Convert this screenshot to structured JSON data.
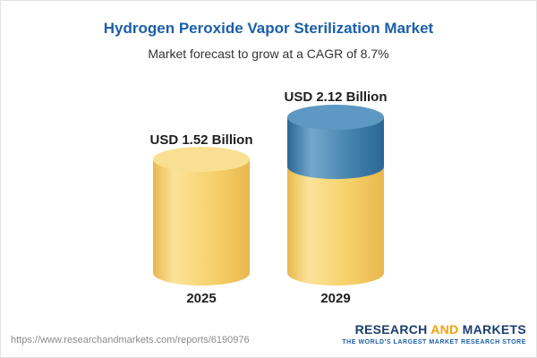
{
  "header": {
    "title": "Hydrogen Peroxide Vapor Sterilization Market",
    "subtitle": "Market forecast to grow at a CAGR of 8.7%"
  },
  "chart_data": {
    "type": "bar",
    "variant": "3d-cylinder",
    "categories": [
      "2025",
      "2029"
    ],
    "values": [
      1.52,
      2.12
    ],
    "value_labels": [
      "USD 1.52 Billion",
      "USD 2.12 Billion"
    ],
    "unit": "USD Billion",
    "title": "Hydrogen Peroxide Vapor Sterilization Market",
    "annotation": "CAGR 8.7%",
    "xlabel": "",
    "ylabel": "",
    "legend": "none",
    "grid": false,
    "colors": {
      "base_segment": "#f7d26c",
      "growth_segment": "#4583ad",
      "title_text": "#1b5fa8",
      "label_text": "#1e1e1e"
    },
    "notes": "2029 cylinder shows base value in yellow with incremental growth segment in blue on top"
  },
  "footer": {
    "url": "https://www.researchandmarkets.com/reports/6190976",
    "logo": {
      "word1": "RESEARCH",
      "word2": "AND",
      "word3": "MARKETS",
      "tagline": "THE WORLD'S LARGEST MARKET RESEARCH STORE"
    }
  }
}
